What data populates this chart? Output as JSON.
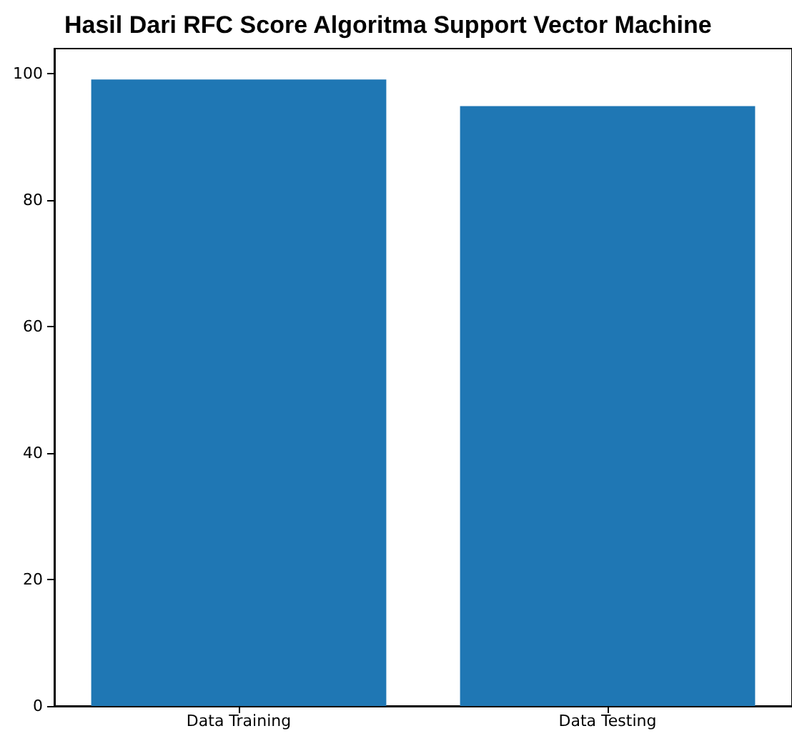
{
  "chart_data": {
    "type": "bar",
    "title": "Hasil Dari RFC Score Algoritma Support Vector Machine",
    "categories": [
      "Data Training",
      "Data Testing"
    ],
    "values": [
      99.1,
      94.9
    ],
    "color": "#1f77b4",
    "ylim": [
      0,
      104
    ],
    "yticks": [
      0,
      20,
      40,
      60,
      80,
      100
    ],
    "grid": false
  }
}
